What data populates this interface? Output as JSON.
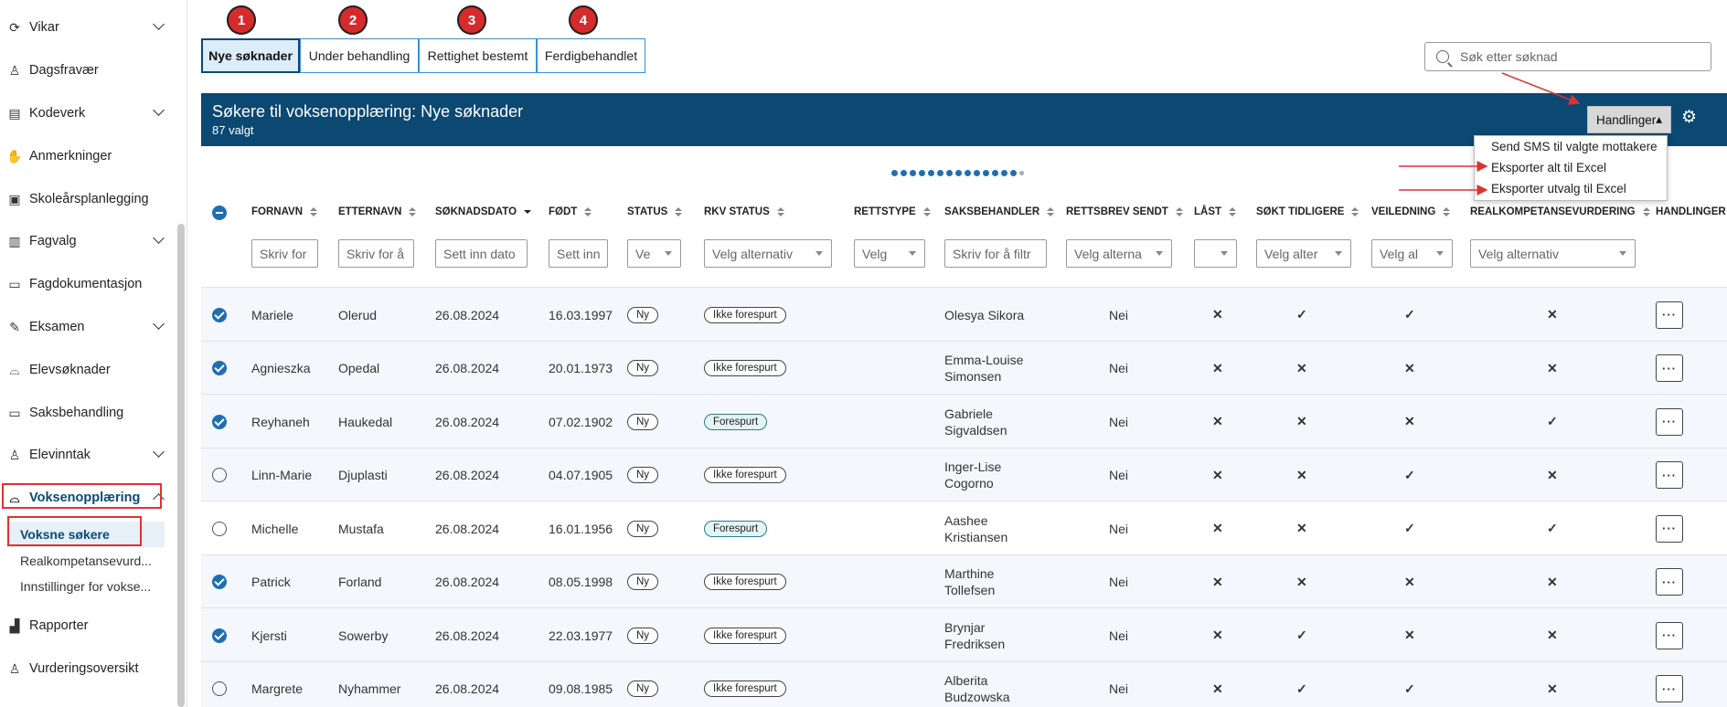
{
  "sidebar": {
    "items": [
      {
        "label": "Vikar",
        "icon": "refresh-icon",
        "chevron": true
      },
      {
        "label": "Dagsfravær",
        "icon": "person-minus-icon",
        "chevron": false
      },
      {
        "label": "Kodeverk",
        "icon": "database-icon",
        "chevron": true
      },
      {
        "label": "Anmerkninger",
        "icon": "hand-icon",
        "chevron": false
      },
      {
        "label": "Skoleårsplanlegging",
        "icon": "calendar-check-icon",
        "chevron": false
      },
      {
        "label": "Fagvalg",
        "icon": "book-icon",
        "chevron": true
      },
      {
        "label": "Fagdokumentasjon",
        "icon": "folder-icon",
        "chevron": false
      },
      {
        "label": "Eksamen",
        "icon": "edit-icon",
        "chevron": true
      },
      {
        "label": "Elevsøknader",
        "icon": "inbox-icon",
        "chevron": false
      },
      {
        "label": "Saksbehandling",
        "icon": "folder-open-icon",
        "chevron": false
      },
      {
        "label": "Elevinntak",
        "icon": "person-plus-icon",
        "chevron": true
      },
      {
        "label": "Voksenopplæring",
        "icon": "inbox-icon",
        "chevron": true,
        "active": true
      },
      {
        "label": "Rapporter",
        "icon": "bar-chart-icon",
        "chevron": false
      },
      {
        "label": "Vurderingsoversikt",
        "icon": "person-check-icon",
        "chevron": false
      }
    ],
    "subitems": [
      {
        "label": "Voksne søkere",
        "selected": true
      },
      {
        "label": "Realkompetansevurd..."
      },
      {
        "label": "Innstillinger for vokse..."
      }
    ]
  },
  "tabs": [
    {
      "label": "Nye søknader",
      "badge": "1",
      "selected": true
    },
    {
      "label": "Under behandling",
      "badge": "2"
    },
    {
      "label": "Rettighet bestemt",
      "badge": "3"
    },
    {
      "label": "Ferdigbehandlet",
      "badge": "4"
    }
  ],
  "search": {
    "placeholder": "Søk etter søknad"
  },
  "header": {
    "title": "Søkere til voksenopplæring: Nye søknader",
    "selected_count": "87 valgt",
    "actions_label": "Handlinger",
    "actions_arrow": "▴"
  },
  "actions_menu": [
    "Send SMS til valgte mottakere",
    "Eksporter alt til Excel",
    "Eksporter utvalg til Excel"
  ],
  "columns": [
    "FORNAVN",
    "ETTERNAVN",
    "SØKNADSDATO",
    "FØDT",
    "STATUS",
    "RKV STATUS",
    "RETTSTYPE",
    "SAKSBEHANDLER",
    "RETTSBREV SENDT",
    "LÅST",
    "SØKT TIDLIGERE",
    "VEILEDNING",
    "REALKOMPETANSEVURDERING",
    "HANDLINGER"
  ],
  "filters": {
    "fornavn": "Skriv for",
    "etternavn": "Skriv for å",
    "soknadsdato": "Sett inn dato",
    "fodt": "Sett inn",
    "status": "Ve",
    "rkv_status": "Velg alternativ",
    "rettstype": "Velg",
    "saksbehandler": "Skriv for å filtr",
    "rettsbrev": "Velg alterna",
    "last": "",
    "sokt": "Velg alter",
    "veiledning": "Velg al",
    "realkompetanse": "Velg alternativ"
  },
  "rows": [
    {
      "checked": true,
      "fornavn": "Mariele",
      "etternavn": "Olerud",
      "dato": "26.08.2024",
      "fodt": "16.03.1997",
      "status": "Ny",
      "rkv": "Ikke forespurt",
      "saks1": "Olesya Sikora",
      "saks2": "",
      "rettsbrev": "Nei",
      "last": "x",
      "sokt": "ok",
      "veil": "ok",
      "real": "x"
    },
    {
      "checked": true,
      "fornavn": "Agnieszka",
      "etternavn": "Opedal",
      "dato": "26.08.2024",
      "fodt": "20.01.1973",
      "status": "Ny",
      "rkv": "Ikke forespurt",
      "saks1": "Emma-Louise",
      "saks2": "Simonsen",
      "rettsbrev": "Nei",
      "last": "x",
      "sokt": "x",
      "veil": "x",
      "real": "x"
    },
    {
      "checked": true,
      "fornavn": "Reyhaneh",
      "etternavn": "Haukedal",
      "dato": "26.08.2024",
      "fodt": "07.02.1902",
      "status": "Ny",
      "rkv": "Forespurt",
      "saks1": "Gabriele",
      "saks2": "Sigvaldsen",
      "rettsbrev": "Nei",
      "last": "x",
      "sokt": "x",
      "veil": "x",
      "real": "ok"
    },
    {
      "checked": false,
      "fornavn": "Linn-Marie",
      "etternavn": "Djuplasti",
      "dato": "26.08.2024",
      "fodt": "04.07.1905",
      "status": "Ny",
      "rkv": "Ikke forespurt",
      "saks1": "Inger-Lise",
      "saks2": "Cogorno",
      "rettsbrev": "Nei",
      "last": "x",
      "sokt": "x",
      "veil": "ok",
      "real": "x"
    },
    {
      "checked": false,
      "fornavn": "Michelle",
      "etternavn": "Mustafa",
      "dato": "26.08.2024",
      "fodt": "16.01.1956",
      "status": "Ny",
      "rkv": "Forespurt",
      "saks1": "Aashee",
      "saks2": "Kristiansen",
      "rettsbrev": "Nei",
      "last": "x",
      "sokt": "x",
      "veil": "ok",
      "real": "ok"
    },
    {
      "checked": true,
      "fornavn": "Patrick",
      "etternavn": "Forland",
      "dato": "26.08.2024",
      "fodt": "08.05.1998",
      "status": "Ny",
      "rkv": "Ikke forespurt",
      "saks1": "Marthine",
      "saks2": "Tollefsen",
      "rettsbrev": "Nei",
      "last": "x",
      "sokt": "x",
      "veil": "x",
      "real": "x"
    },
    {
      "checked": true,
      "fornavn": "Kjersti",
      "etternavn": "Sowerby",
      "dato": "26.08.2024",
      "fodt": "22.03.1977",
      "status": "Ny",
      "rkv": "Ikke forespurt",
      "saks1": "Brynjar",
      "saks2": "Fredriksen",
      "rettsbrev": "Nei",
      "last": "x",
      "sokt": "ok",
      "veil": "x",
      "real": "x"
    },
    {
      "checked": false,
      "fornavn": "Margrete",
      "etternavn": "Nyhammer",
      "dato": "26.08.2024",
      "fodt": "09.08.1985",
      "status": "Ny",
      "rkv": "Ikke forespurt",
      "saks1": "Alberita",
      "saks2": "Budzowska",
      "rettsbrev": "Nei",
      "last": "x",
      "sokt": "ok",
      "veil": "ok",
      "real": "x"
    }
  ],
  "row_action_label": "···",
  "glyphs": {
    "x": "✕",
    "ok": "✓"
  },
  "colors": {
    "header_band": "#0b4872",
    "accent": "#1f6fb0",
    "cross": "#d12b2b",
    "check": "#2a8a32",
    "annotation": "#e03131"
  }
}
